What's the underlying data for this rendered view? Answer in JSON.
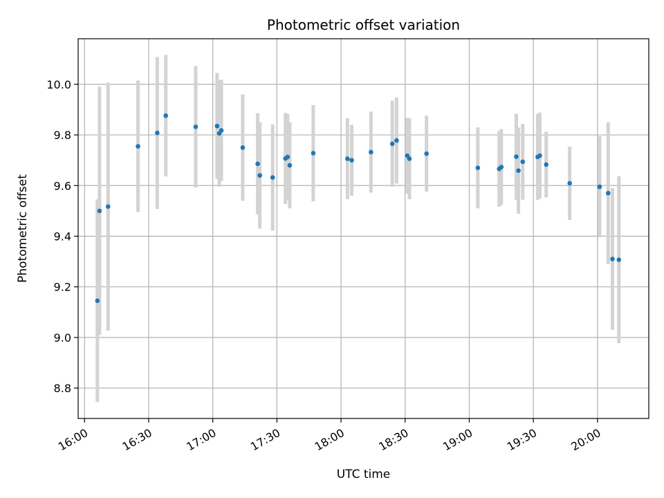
{
  "chart_data": {
    "type": "scatter",
    "title": "Photometric offset variation",
    "xlabel": "UTC time",
    "ylabel": "Photometric offset",
    "x_ticks": [
      "16:00",
      "16:30",
      "17:00",
      "17:30",
      "18:00",
      "18:30",
      "19:00",
      "19:30",
      "20:00"
    ],
    "y_ticks": [
      "8.8",
      "9.0",
      "9.2",
      "9.4",
      "9.6",
      "9.8",
      "10.0"
    ],
    "xlim": [
      "15:57",
      "20:24"
    ],
    "ylim": [
      8.68,
      10.18
    ],
    "grid": true,
    "point_color": "#1f77b4",
    "errorbar_color": "#d3d3d3",
    "points": [
      {
        "x": "16:06",
        "y": 9.145,
        "yerr": 0.4
      },
      {
        "x": "16:07",
        "y": 9.5,
        "yerr": 0.49
      },
      {
        "x": "16:11",
        "y": 9.517,
        "yerr": 0.49
      },
      {
        "x": "16:25",
        "y": 9.755,
        "yerr": 0.26
      },
      {
        "x": "16:34",
        "y": 9.808,
        "yerr": 0.3
      },
      {
        "x": "16:38",
        "y": 9.876,
        "yerr": 0.24
      },
      {
        "x": "16:52",
        "y": 9.832,
        "yerr": 0.24
      },
      {
        "x": "17:02",
        "y": 9.835,
        "yerr": 0.21
      },
      {
        "x": "17:03",
        "y": 9.806,
        "yerr": 0.21
      },
      {
        "x": "17:04",
        "y": 9.818,
        "yerr": 0.2
      },
      {
        "x": "17:14",
        "y": 9.75,
        "yerr": 0.21
      },
      {
        "x": "17:21",
        "y": 9.686,
        "yerr": 0.2
      },
      {
        "x": "17:22",
        "y": 9.64,
        "yerr": 0.21
      },
      {
        "x": "17:28",
        "y": 9.632,
        "yerr": 0.21
      },
      {
        "x": "17:34",
        "y": 9.707,
        "yerr": 0.18
      },
      {
        "x": "17:35",
        "y": 9.713,
        "yerr": 0.17
      },
      {
        "x": "17:36",
        "y": 9.68,
        "yerr": 0.17
      },
      {
        "x": "17:47",
        "y": 9.728,
        "yerr": 0.19
      },
      {
        "x": "18:03",
        "y": 9.706,
        "yerr": 0.16
      },
      {
        "x": "18:05",
        "y": 9.7,
        "yerr": 0.14
      },
      {
        "x": "18:14",
        "y": 9.732,
        "yerr": 0.16
      },
      {
        "x": "18:24",
        "y": 9.765,
        "yerr": 0.17
      },
      {
        "x": "18:26",
        "y": 9.778,
        "yerr": 0.17
      },
      {
        "x": "18:31",
        "y": 9.718,
        "yerr": 0.15
      },
      {
        "x": "18:32",
        "y": 9.706,
        "yerr": 0.16
      },
      {
        "x": "18:40",
        "y": 9.726,
        "yerr": 0.15
      },
      {
        "x": "19:04",
        "y": 9.67,
        "yerr": 0.16
      },
      {
        "x": "19:14",
        "y": 9.666,
        "yerr": 0.15
      },
      {
        "x": "19:15",
        "y": 9.673,
        "yerr": 0.15
      },
      {
        "x": "19:22",
        "y": 9.714,
        "yerr": 0.17
      },
      {
        "x": "19:23",
        "y": 9.659,
        "yerr": 0.17
      },
      {
        "x": "19:25",
        "y": 9.694,
        "yerr": 0.15
      },
      {
        "x": "19:32",
        "y": 9.713,
        "yerr": 0.17
      },
      {
        "x": "19:33",
        "y": 9.718,
        "yerr": 0.17
      },
      {
        "x": "19:36",
        "y": 9.683,
        "yerr": 0.13
      },
      {
        "x": "19:47",
        "y": 9.609,
        "yerr": 0.145
      },
      {
        "x": "20:01",
        "y": 9.595,
        "yerr": 0.2
      },
      {
        "x": "20:05",
        "y": 9.57,
        "yerr": 0.28
      },
      {
        "x": "20:07",
        "y": 9.31,
        "yerr": 0.28
      },
      {
        "x": "20:10",
        "y": 9.307,
        "yerr": 0.33
      }
    ]
  }
}
